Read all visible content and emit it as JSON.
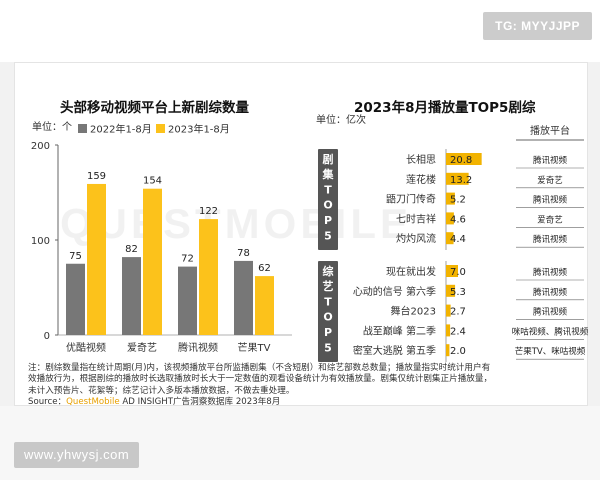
{
  "tags": {
    "top_right": "TG: MYYJJPP",
    "bottom_left": "www.yhwysj.com"
  },
  "watermark": "QUESTMOBILE",
  "colors": {
    "gray_bar": "#777777",
    "gold_bar": "#fcc21b",
    "gold_label": "#f2b300",
    "dark_vertical": "#555555"
  },
  "left_chart": {
    "title": "头部移动视频平台上新剧综数量",
    "unit": "单位：个"
  },
  "right_chart": {
    "title": "2023年8月播放量TOP5剧综",
    "unit": "单位：亿次",
    "platform_header": "播放平台",
    "group_labels": [
      "剧集TOP5",
      "综艺TOP5"
    ]
  },
  "chart_data": [
    {
      "type": "bar",
      "title": "头部移动视频平台上新剧综数量",
      "ylabel": "单位：个",
      "categories": [
        "优酷视频",
        "爱奇艺",
        "腾讯视频",
        "芒果TV"
      ],
      "series": [
        {
          "name": "2022年1-8月",
          "values": [
            75,
            82,
            72,
            78
          ],
          "color": "#777777"
        },
        {
          "name": "2023年1-8月",
          "values": [
            159,
            154,
            122,
            62
          ],
          "color": "#fcc21b"
        }
      ],
      "yticks": [
        0,
        100,
        200
      ],
      "ylim": [
        0,
        200
      ],
      "legend": "top-left",
      "grid": false
    },
    {
      "type": "bar",
      "orientation": "horizontal",
      "title": "2023年8月播放量TOP5剧综",
      "unit": "单位：亿次",
      "groups": [
        {
          "name": "剧集TOP5",
          "items": [
            {
              "label": "长相思",
              "value": 20.8,
              "value_text": "20.8",
              "platform": "腾讯视频"
            },
            {
              "label": "莲花楼",
              "value": 13.2,
              "value_text": "13.2",
              "platform": "爱奇艺"
            },
            {
              "label": "鼯刀门传奇",
              "value": 5.2,
              "value_text": "5.2",
              "platform": "腾讯视频"
            },
            {
              "label": "七时吉祥",
              "value": 4.6,
              "value_text": "4.6",
              "platform": "爱奇艺"
            },
            {
              "label": "灼灼风流",
              "value": 4.4,
              "value_text": "4.4",
              "platform": "腾讯视频"
            }
          ]
        },
        {
          "name": "综艺TOP5",
          "items": [
            {
              "label": "现在就出发",
              "value": 7.0,
              "value_text": "7.0",
              "platform": "腾讯视频"
            },
            {
              "label": "心动的信号 第六季",
              "value": 5.3,
              "value_text": "5.3",
              "platform": "腾讯视频"
            },
            {
              "label": "舞台2023",
              "value": 2.7,
              "value_text": "2.7",
              "platform": "腾讯视频"
            },
            {
              "label": "战至巅峰 第二季",
              "value": 2.4,
              "value_text": "2.4",
              "platform": "咪咕视频、腾讯视频"
            },
            {
              "label": "密室大逃脱 第五季",
              "value": 2.0,
              "value_text": "2.0",
              "platform": "芒果TV、咪咕视频"
            }
          ]
        }
      ],
      "xlim": [
        0,
        21
      ]
    }
  ],
  "footnote": {
    "line1": "注：剧综数量指在统计周期(月)内，该视频播放平台所监播剧集（不含短剧）和综艺部数总数量；播放量指实时统计用户有",
    "line2": "效播放行为，根据剧综的播放时长选取播放时长大于一定数值的观看设备统计为有效播放量。剧集仅统计剧集正片播放量，",
    "line3": "未计入预告片、花絮等；综艺记计入多版本播放数据，不做去重处理。",
    "source_prefix": "Source：",
    "source_brand": "QuestMobile",
    "source_rest": " AD INSIGHT广告洞察数据库 2023年8月"
  }
}
